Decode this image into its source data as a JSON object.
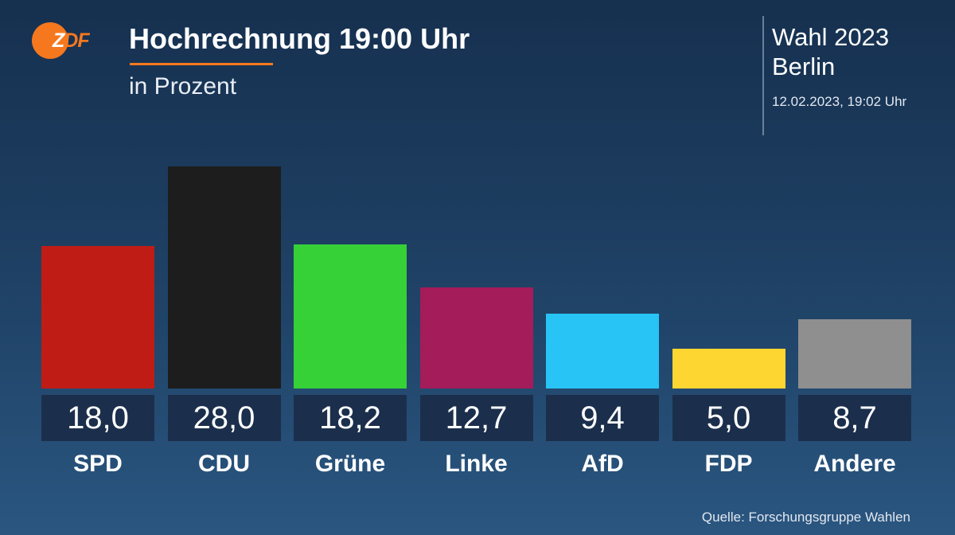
{
  "header": {
    "logo_text": "ZDF",
    "title": "Hochrechnung 19:00 Uhr",
    "subtitle": "in Prozent"
  },
  "info": {
    "election": "Wahl 2023",
    "region": "Berlin",
    "datetime": "12.02.2023, 19:02 Uhr"
  },
  "source": "Quelle: Forschungsgruppe Wahlen",
  "colors": {
    "accent": "#f6781e",
    "value_box": "#1b2f4c"
  },
  "chart_data": {
    "type": "bar",
    "title": "Hochrechnung 19:00 Uhr",
    "subtitle": "in Prozent",
    "xlabel": "",
    "ylabel": "",
    "ylim": [
      0,
      28
    ],
    "grid": false,
    "categories": [
      "SPD",
      "CDU",
      "Grüne",
      "Linke",
      "AfD",
      "FDP",
      "Andere"
    ],
    "values": [
      18.0,
      28.0,
      18.2,
      12.7,
      9.4,
      5.0,
      8.7
    ],
    "value_labels": [
      "18,0",
      "28,0",
      "18,2",
      "12,7",
      "9,4",
      "5,0",
      "8,7"
    ],
    "bar_colors": [
      "#c01c16",
      "#1d1d1d",
      "#35d137",
      "#a51c5a",
      "#27c4f5",
      "#fdd632",
      "#8f8f8f"
    ]
  }
}
